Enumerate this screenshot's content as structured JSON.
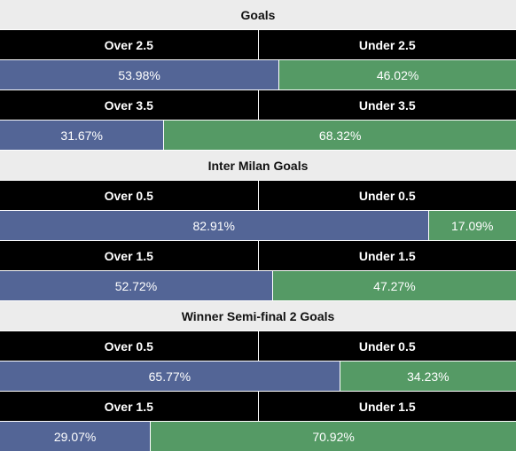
{
  "colors": {
    "over": "#536596",
    "under": "#559a65",
    "header_bg": "#000000",
    "title_bg": "#ececec"
  },
  "sections": [
    {
      "title": "Goals",
      "markets": [
        {
          "over_label": "Over 2.5",
          "under_label": "Under 2.5",
          "over_pct": "53.98%",
          "under_pct": "46.02%",
          "over_value": 53.98,
          "under_value": 46.02
        },
        {
          "over_label": "Over 3.5",
          "under_label": "Under 3.5",
          "over_pct": "31.67%",
          "under_pct": "68.32%",
          "over_value": 31.67,
          "under_value": 68.32
        }
      ]
    },
    {
      "title": "Inter Milan Goals",
      "markets": [
        {
          "over_label": "Over 0.5",
          "under_label": "Under 0.5",
          "over_pct": "82.91%",
          "under_pct": "17.09%",
          "over_value": 82.91,
          "under_value": 17.09
        },
        {
          "over_label": "Over 1.5",
          "under_label": "Under 1.5",
          "over_pct": "52.72%",
          "under_pct": "47.27%",
          "over_value": 52.72,
          "under_value": 47.27
        }
      ]
    },
    {
      "title": "Winner Semi-final 2 Goals",
      "markets": [
        {
          "over_label": "Over 0.5",
          "under_label": "Under 0.5",
          "over_pct": "65.77%",
          "under_pct": "34.23%",
          "over_value": 65.77,
          "under_value": 34.23
        },
        {
          "over_label": "Over 1.5",
          "under_label": "Under 1.5",
          "over_pct": "29.07%",
          "under_pct": "70.92%",
          "over_value": 29.07,
          "under_value": 70.92
        }
      ]
    }
  ]
}
